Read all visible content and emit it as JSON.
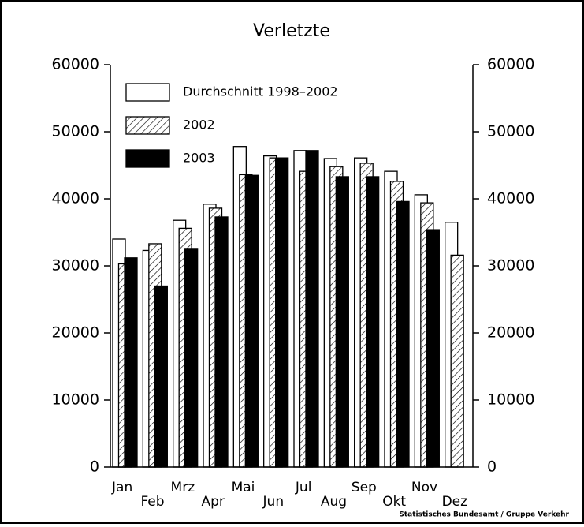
{
  "chart_data": {
    "type": "bar",
    "title": "Verletzte",
    "categories": [
      "Jan",
      "Feb",
      "Mrz",
      "Apr",
      "Mai",
      "Jun",
      "Jul",
      "Aug",
      "Sep",
      "Okt",
      "Nov",
      "Dez"
    ],
    "series": [
      {
        "name": "Durchschnitt 1998–2002",
        "color": "#ffffff",
        "pattern": "solid",
        "values": [
          34000,
          32300,
          36800,
          39200,
          47800,
          46400,
          47200,
          46000,
          46100,
          44100,
          40600,
          36500
        ]
      },
      {
        "name": "2002",
        "color": "#ffffff",
        "pattern": "hatch",
        "values": [
          30300,
          33300,
          35600,
          38600,
          43600,
          46100,
          44100,
          44800,
          45300,
          42600,
          39400,
          31600
        ]
      },
      {
        "name": "2003",
        "color": "#000000",
        "pattern": "solid",
        "values": [
          31200,
          27000,
          32600,
          37300,
          43500,
          46100,
          47200,
          43300,
          43300,
          39600,
          35400,
          null
        ]
      }
    ],
    "ylim": [
      0,
      60000
    ],
    "yticks": [
      0,
      10000,
      20000,
      30000,
      40000,
      50000,
      60000
    ],
    "y2lim": [
      0,
      60000
    ],
    "y2ticks": [
      0,
      10000,
      20000,
      30000,
      40000,
      50000,
      60000
    ],
    "legend": "top-left",
    "source": "Statistisches Bundesamt / Gruppe Verkehr"
  }
}
